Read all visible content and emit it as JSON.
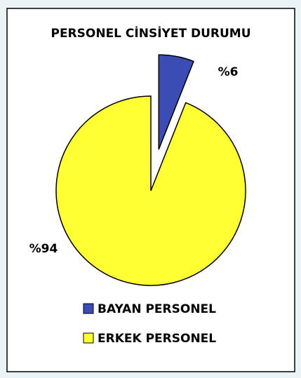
{
  "chart_data": {
    "type": "pie",
    "title": "PERSONEL CİNSİYET DURUMU",
    "categories": [
      "BAYAN PERSONEL",
      "ERKEK PERSONEL"
    ],
    "values": [
      6,
      94
    ],
    "value_labels": [
      "%6",
      "%94"
    ],
    "colors": [
      "#3b4db5",
      "#ffff33"
    ],
    "exploded": [
      true,
      false
    ],
    "legend": "bottom"
  }
}
